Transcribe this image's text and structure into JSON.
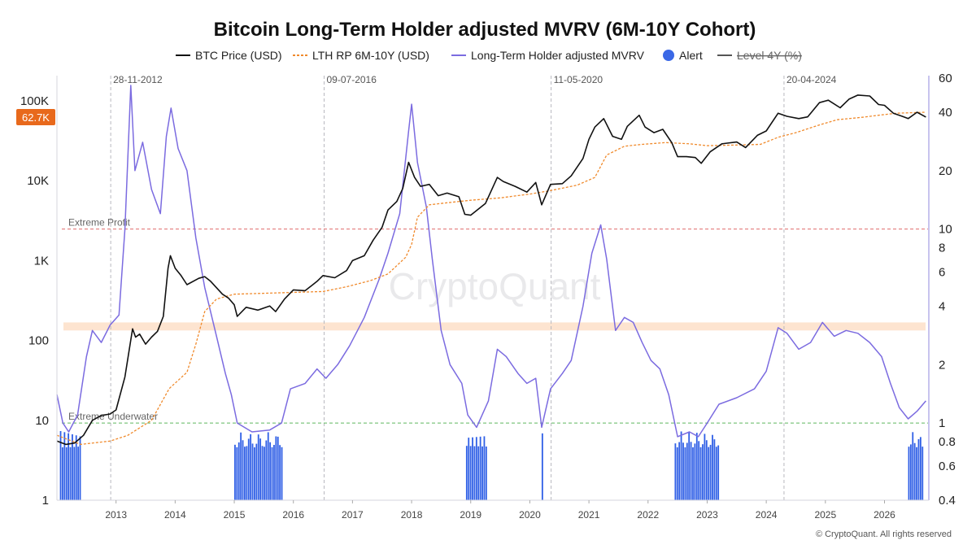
{
  "chart_data": {
    "type": "line",
    "title": "Bitcoin Long-Term Holder adjusted MVRV (6M-10Y Cohort)",
    "legend": [
      {
        "name": "BTC Price (USD)",
        "style": "solid",
        "color": "#111111"
      },
      {
        "name": "LTH RP 6M-10Y (USD)",
        "style": "dashed",
        "color": "#f08a2c"
      },
      {
        "name": "Long-Term Holder adjusted MVRV",
        "style": "solid",
        "color": "#7b6be0"
      },
      {
        "name": "Alert",
        "style": "dot",
        "color": "#3a68e6"
      },
      {
        "name": "Level 4Y (%)",
        "style": "solid",
        "color": "#555555",
        "disabled": true
      }
    ],
    "x_ticks": [
      "2013",
      "2014",
      "2015",
      "2016",
      "2017",
      "2018",
      "2019",
      "2020",
      "2021",
      "2022",
      "2023",
      "2024",
      "2025",
      "2026"
    ],
    "y_left_scale": "log",
    "y_left_range": [
      1,
      200000
    ],
    "y_left_ticks": [
      "100K",
      "10K",
      "1K",
      "100",
      "10",
      "1"
    ],
    "y_right_scale": "log",
    "y_right_range": [
      0.4,
      60
    ],
    "y_right_ticks": [
      "60",
      "40",
      "20",
      "10",
      "8",
      "6",
      "4",
      "2",
      "1",
      "0.8",
      "0.6",
      "0.4"
    ],
    "current_price_badge": "62.7K",
    "halving_dates": [
      {
        "label": "28-11-2012",
        "date": 2012.91
      },
      {
        "label": "09-07-2016",
        "date": 2016.52
      },
      {
        "label": "11-05-2020",
        "date": 2020.36
      },
      {
        "label": "20-04-2024",
        "date": 2024.3
      }
    ],
    "levels": [
      {
        "label": "Extreme Profit",
        "value": 10,
        "color": "#e06b6b"
      },
      {
        "label": "Extreme Underwater",
        "value": 1,
        "color": "#5fb85f"
      }
    ],
    "band": {
      "from": 3,
      "to": 3.3,
      "color": "#fde4d0"
    },
    "series": [
      {
        "name": "BTC Price (USD)",
        "axis": "left",
        "points": [
          [
            2012.0,
            5.5
          ],
          [
            2012.15,
            5
          ],
          [
            2012.3,
            5.2
          ],
          [
            2012.45,
            6.5
          ],
          [
            2012.6,
            10
          ],
          [
            2012.75,
            11.5
          ],
          [
            2012.9,
            12
          ],
          [
            2013.0,
            13.5
          ],
          [
            2013.15,
            35
          ],
          [
            2013.28,
            140
          ],
          [
            2013.33,
            110
          ],
          [
            2013.4,
            120
          ],
          [
            2013.5,
            90
          ],
          [
            2013.6,
            110
          ],
          [
            2013.7,
            130
          ],
          [
            2013.8,
            200
          ],
          [
            2013.88,
            800
          ],
          [
            2013.92,
            1150
          ],
          [
            2014.0,
            800
          ],
          [
            2014.1,
            650
          ],
          [
            2014.2,
            500
          ],
          [
            2014.4,
            600
          ],
          [
            2014.5,
            630
          ],
          [
            2014.6,
            550
          ],
          [
            2014.8,
            380
          ],
          [
            2014.9,
            340
          ],
          [
            2015.0,
            280
          ],
          [
            2015.05,
            200
          ],
          [
            2015.2,
            260
          ],
          [
            2015.4,
            240
          ],
          [
            2015.6,
            270
          ],
          [
            2015.7,
            230
          ],
          [
            2015.85,
            330
          ],
          [
            2016.0,
            430
          ],
          [
            2016.2,
            420
          ],
          [
            2016.4,
            550
          ],
          [
            2016.5,
            650
          ],
          [
            2016.7,
            610
          ],
          [
            2016.9,
            750
          ],
          [
            2017.0,
            1000
          ],
          [
            2017.2,
            1150
          ],
          [
            2017.35,
            1800
          ],
          [
            2017.5,
            2600
          ],
          [
            2017.6,
            4300
          ],
          [
            2017.75,
            5500
          ],
          [
            2017.85,
            8000
          ],
          [
            2017.95,
            17000
          ],
          [
            2018.05,
            11000
          ],
          [
            2018.15,
            8500
          ],
          [
            2018.3,
            9000
          ],
          [
            2018.45,
            6500
          ],
          [
            2018.6,
            7000
          ],
          [
            2018.8,
            6300
          ],
          [
            2018.9,
            3800
          ],
          [
            2019.0,
            3700
          ],
          [
            2019.25,
            5200
          ],
          [
            2019.45,
            11000
          ],
          [
            2019.55,
            9800
          ],
          [
            2019.75,
            8500
          ],
          [
            2019.95,
            7200
          ],
          [
            2020.1,
            9500
          ],
          [
            2020.2,
            5000
          ],
          [
            2020.35,
            9000
          ],
          [
            2020.55,
            9200
          ],
          [
            2020.7,
            11500
          ],
          [
            2020.9,
            19000
          ],
          [
            2021.0,
            33000
          ],
          [
            2021.1,
            47000
          ],
          [
            2021.25,
            60000
          ],
          [
            2021.4,
            36000
          ],
          [
            2021.55,
            33000
          ],
          [
            2021.65,
            48000
          ],
          [
            2021.85,
            66000
          ],
          [
            2021.95,
            47000
          ],
          [
            2022.1,
            40000
          ],
          [
            2022.25,
            44000
          ],
          [
            2022.4,
            30000
          ],
          [
            2022.5,
            20000
          ],
          [
            2022.65,
            20000
          ],
          [
            2022.8,
            19500
          ],
          [
            2022.9,
            16500
          ],
          [
            2023.05,
            23000
          ],
          [
            2023.25,
            29000
          ],
          [
            2023.5,
            30500
          ],
          [
            2023.65,
            26000
          ],
          [
            2023.85,
            37000
          ],
          [
            2024.0,
            42000
          ],
          [
            2024.2,
            70000
          ],
          [
            2024.35,
            64000
          ],
          [
            2024.55,
            60000
          ],
          [
            2024.7,
            63000
          ],
          [
            2024.9,
            95000
          ],
          [
            2025.05,
            102000
          ],
          [
            2025.25,
            82000
          ],
          [
            2025.4,
            105000
          ],
          [
            2025.55,
            118000
          ],
          [
            2025.75,
            115000
          ],
          [
            2025.9,
            90000
          ],
          [
            2026.0,
            88000
          ],
          [
            2026.15,
            70000
          ],
          [
            2026.3,
            64000
          ],
          [
            2026.4,
            60000
          ],
          [
            2026.55,
            72000
          ],
          [
            2026.7,
            62700
          ]
        ]
      },
      {
        "name": "LTH RP 6M-10Y (USD)",
        "axis": "left",
        "points": [
          [
            2012.0,
            6.5
          ],
          [
            2012.4,
            5
          ],
          [
            2012.9,
            5.5
          ],
          [
            2013.2,
            6.5
          ],
          [
            2013.6,
            10
          ],
          [
            2013.9,
            25
          ],
          [
            2014.2,
            40
          ],
          [
            2014.35,
            90
          ],
          [
            2014.5,
            230
          ],
          [
            2014.7,
            330
          ],
          [
            2015.0,
            380
          ],
          [
            2015.5,
            390
          ],
          [
            2016.0,
            400
          ],
          [
            2016.5,
            410
          ],
          [
            2016.9,
            470
          ],
          [
            2017.3,
            560
          ],
          [
            2017.6,
            680
          ],
          [
            2017.9,
            1100
          ],
          [
            2018.0,
            1600
          ],
          [
            2018.1,
            3500
          ],
          [
            2018.3,
            5000
          ],
          [
            2018.6,
            5300
          ],
          [
            2019.0,
            5700
          ],
          [
            2019.5,
            6100
          ],
          [
            2020.0,
            6800
          ],
          [
            2020.3,
            7400
          ],
          [
            2020.8,
            8800
          ],
          [
            2021.1,
            11000
          ],
          [
            2021.3,
            21000
          ],
          [
            2021.6,
            27000
          ],
          [
            2021.9,
            28500
          ],
          [
            2022.3,
            30000
          ],
          [
            2022.7,
            29000
          ],
          [
            2023.0,
            27500
          ],
          [
            2023.5,
            28000
          ],
          [
            2023.9,
            28500
          ],
          [
            2024.2,
            35000
          ],
          [
            2024.5,
            40000
          ],
          [
            2024.9,
            50000
          ],
          [
            2025.2,
            58000
          ],
          [
            2025.6,
            62000
          ],
          [
            2025.9,
            66000
          ],
          [
            2026.2,
            70000
          ],
          [
            2026.7,
            72000
          ]
        ]
      },
      {
        "name": "Long-Term Holder adjusted MVRV",
        "axis": "right",
        "points": [
          [
            2012.0,
            1.4
          ],
          [
            2012.1,
            1.0
          ],
          [
            2012.2,
            0.9
          ],
          [
            2012.35,
            1.1
          ],
          [
            2012.5,
            2.2
          ],
          [
            2012.6,
            3.0
          ],
          [
            2012.75,
            2.6
          ],
          [
            2012.9,
            3.2
          ],
          [
            2013.05,
            3.6
          ],
          [
            2013.15,
            10
          ],
          [
            2013.25,
            55
          ],
          [
            2013.32,
            20
          ],
          [
            2013.45,
            28
          ],
          [
            2013.6,
            16
          ],
          [
            2013.75,
            12
          ],
          [
            2013.85,
            30
          ],
          [
            2013.93,
            42
          ],
          [
            2014.05,
            26
          ],
          [
            2014.2,
            20
          ],
          [
            2014.35,
            9
          ],
          [
            2014.5,
            5
          ],
          [
            2014.7,
            2.8
          ],
          [
            2014.85,
            1.8
          ],
          [
            2014.95,
            1.4
          ],
          [
            2015.05,
            1.0
          ],
          [
            2015.3,
            0.9
          ],
          [
            2015.6,
            0.92
          ],
          [
            2015.8,
            1.0
          ],
          [
            2015.95,
            1.5
          ],
          [
            2016.2,
            1.6
          ],
          [
            2016.4,
            1.9
          ],
          [
            2016.55,
            1.7
          ],
          [
            2016.75,
            2.0
          ],
          [
            2016.95,
            2.5
          ],
          [
            2017.2,
            3.5
          ],
          [
            2017.45,
            5.5
          ],
          [
            2017.6,
            7.5
          ],
          [
            2017.8,
            12
          ],
          [
            2017.95,
            32
          ],
          [
            2018.0,
            44
          ],
          [
            2018.1,
            22
          ],
          [
            2018.25,
            13
          ],
          [
            2018.35,
            7
          ],
          [
            2018.5,
            3.0
          ],
          [
            2018.65,
            2.0
          ],
          [
            2018.85,
            1.6
          ],
          [
            2018.95,
            1.1
          ],
          [
            2019.1,
            0.95
          ],
          [
            2019.3,
            1.3
          ],
          [
            2019.45,
            2.4
          ],
          [
            2019.6,
            2.2
          ],
          [
            2019.8,
            1.8
          ],
          [
            2019.95,
            1.6
          ],
          [
            2020.1,
            1.7
          ],
          [
            2020.2,
            0.95
          ],
          [
            2020.35,
            1.5
          ],
          [
            2020.55,
            1.8
          ],
          [
            2020.7,
            2.1
          ],
          [
            2020.9,
            4.0
          ],
          [
            2021.05,
            7.5
          ],
          [
            2021.2,
            10.5
          ],
          [
            2021.3,
            7.0
          ],
          [
            2021.45,
            3.0
          ],
          [
            2021.6,
            3.5
          ],
          [
            2021.75,
            3.3
          ],
          [
            2021.9,
            2.6
          ],
          [
            2022.05,
            2.1
          ],
          [
            2022.2,
            1.9
          ],
          [
            2022.35,
            1.4
          ],
          [
            2022.5,
            0.85
          ],
          [
            2022.7,
            0.9
          ],
          [
            2022.85,
            0.85
          ],
          [
            2023.0,
            1.0
          ],
          [
            2023.2,
            1.25
          ],
          [
            2023.5,
            1.35
          ],
          [
            2023.8,
            1.5
          ],
          [
            2024.0,
            1.85
          ],
          [
            2024.2,
            3.1
          ],
          [
            2024.35,
            2.9
          ],
          [
            2024.55,
            2.4
          ],
          [
            2024.75,
            2.6
          ],
          [
            2024.95,
            3.3
          ],
          [
            2025.15,
            2.8
          ],
          [
            2025.35,
            3.0
          ],
          [
            2025.55,
            2.9
          ],
          [
            2025.75,
            2.6
          ],
          [
            2025.95,
            2.2
          ],
          [
            2026.1,
            1.6
          ],
          [
            2026.25,
            1.2
          ],
          [
            2026.4,
            1.05
          ],
          [
            2026.55,
            1.15
          ],
          [
            2026.7,
            1.3
          ]
        ]
      }
    ],
    "alert_spans": [
      [
        2012.05,
        2012.4
      ],
      [
        2015.0,
        2015.82
      ],
      [
        2018.92,
        2019.28
      ],
      [
        2020.2,
        2020.22
      ],
      [
        2022.45,
        2023.18
      ],
      [
        2026.4,
        2026.65
      ]
    ],
    "watermark": "CryptoQuant",
    "footer": "© CryptoQuant. All rights reserved"
  }
}
